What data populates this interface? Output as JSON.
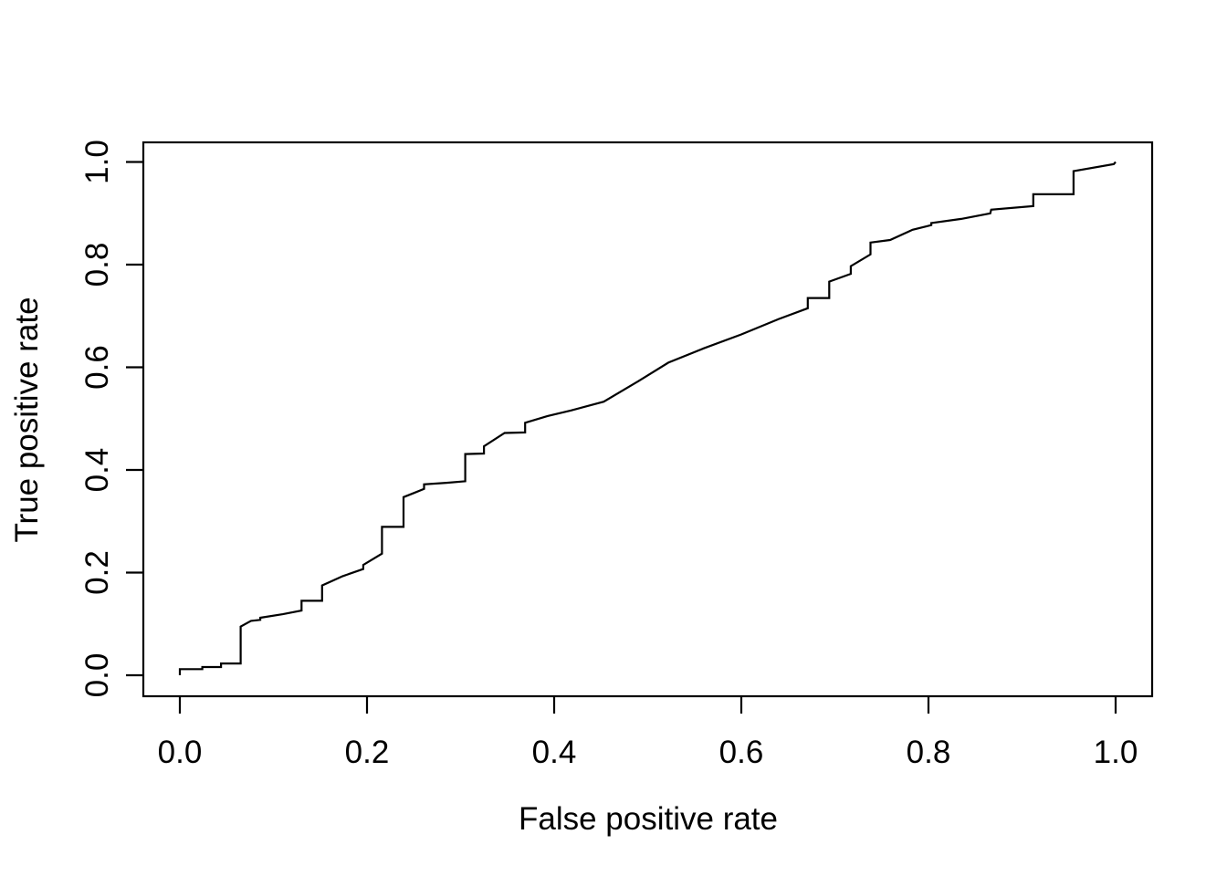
{
  "figure": {
    "background": "#ffffff",
    "axis_color": "#000000",
    "curve_color": "#000000"
  },
  "chart_data": {
    "type": "line",
    "subtype": "roc-step-curve",
    "title": "",
    "xlabel": "False positive rate",
    "ylabel": "True positive rate",
    "xlim": [
      0,
      1
    ],
    "ylim": [
      0,
      1
    ],
    "grid": false,
    "legend_position": "none",
    "x_ticks": [
      0.0,
      0.2,
      0.4,
      0.6,
      0.8,
      1.0
    ],
    "x_tick_labels": [
      "0.0",
      "0.2",
      "0.4",
      "0.6",
      "0.8",
      "1.0"
    ],
    "y_ticks": [
      0.0,
      0.2,
      0.4,
      0.6,
      0.8,
      1.0
    ],
    "y_tick_labels": [
      "0.0",
      "0.2",
      "0.4",
      "0.6",
      "0.8",
      "1.0"
    ],
    "series": [
      {
        "name": "ROC curve",
        "color": "#000000",
        "points": [
          [
            0.0,
            0.0
          ],
          [
            0.0,
            0.012
          ],
          [
            0.024,
            0.012
          ],
          [
            0.024,
            0.016
          ],
          [
            0.044,
            0.016
          ],
          [
            0.044,
            0.023
          ],
          [
            0.065,
            0.023
          ],
          [
            0.065,
            0.095
          ],
          [
            0.076,
            0.106
          ],
          [
            0.086,
            0.108
          ],
          [
            0.086,
            0.112
          ],
          [
            0.11,
            0.119
          ],
          [
            0.13,
            0.126
          ],
          [
            0.13,
            0.145
          ],
          [
            0.152,
            0.145
          ],
          [
            0.152,
            0.175
          ],
          [
            0.174,
            0.193
          ],
          [
            0.196,
            0.207
          ],
          [
            0.196,
            0.215
          ],
          [
            0.216,
            0.237
          ],
          [
            0.216,
            0.289
          ],
          [
            0.239,
            0.289
          ],
          [
            0.239,
            0.347
          ],
          [
            0.25,
            0.355
          ],
          [
            0.261,
            0.363
          ],
          [
            0.261,
            0.372
          ],
          [
            0.285,
            0.375
          ],
          [
            0.305,
            0.378
          ],
          [
            0.305,
            0.431
          ],
          [
            0.325,
            0.432
          ],
          [
            0.325,
            0.446
          ],
          [
            0.347,
            0.472
          ],
          [
            0.369,
            0.473
          ],
          [
            0.369,
            0.492
          ],
          [
            0.393,
            0.505
          ],
          [
            0.418,
            0.516
          ],
          [
            0.453,
            0.533
          ],
          [
            0.49,
            0.573
          ],
          [
            0.522,
            0.609
          ],
          [
            0.56,
            0.637
          ],
          [
            0.6,
            0.664
          ],
          [
            0.64,
            0.694
          ],
          [
            0.671,
            0.715
          ],
          [
            0.671,
            0.735
          ],
          [
            0.694,
            0.735
          ],
          [
            0.694,
            0.767
          ],
          [
            0.717,
            0.782
          ],
          [
            0.717,
            0.797
          ],
          [
            0.738,
            0.82
          ],
          [
            0.738,
            0.843
          ],
          [
            0.759,
            0.848
          ],
          [
            0.783,
            0.868
          ],
          [
            0.803,
            0.877
          ],
          [
            0.803,
            0.881
          ],
          [
            0.835,
            0.889
          ],
          [
            0.866,
            0.9
          ],
          [
            0.867,
            0.907
          ],
          [
            0.912,
            0.914
          ],
          [
            0.912,
            0.937
          ],
          [
            0.955,
            0.937
          ],
          [
            0.955,
            0.982
          ],
          [
            0.998,
            0.996
          ],
          [
            1.0,
            1.0
          ]
        ]
      }
    ]
  }
}
